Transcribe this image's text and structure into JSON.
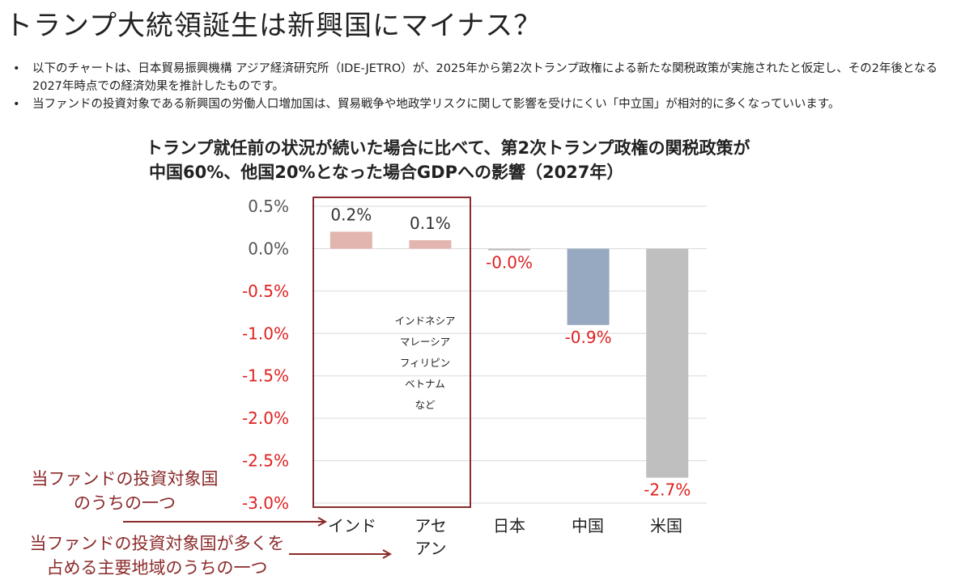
{
  "page": {
    "title": "トランプ大統領誕生は新興国にマイナス？",
    "bullets": [
      "以下のチャートは、日本貿易振興機構 アジア経済研究所（IDE-JETRO）が、2025年から第2次トランプ政権による新たな関税政策が実施されたと仮定し、その2年後となる2027年時点での経済効果を推計したものです。",
      "当ファンドの投資対象である新興国の労働人口増加国は、貿易戦争や地政学リスクに関して影響を受けにくい「中立国」が相対的に多くなっていいます。"
    ]
  },
  "chart_data": {
    "type": "bar",
    "title": "トランプ就任前の状況が続いた場合に比べて、第2次トランプ政権の関税政策が",
    "subtitle": "中国60%、他国20%となった場合GDPへの影響（2027年）",
    "categories": [
      "インド",
      "アセアン",
      "日本",
      "中国",
      "米国"
    ],
    "category_lines": [
      [
        "インド"
      ],
      [
        "アセ",
        "アン"
      ],
      [
        "日本"
      ],
      [
        "中国"
      ],
      [
        "米国"
      ]
    ],
    "values": [
      0.2,
      0.1,
      -0.02,
      -0.9,
      -2.7
    ],
    "data_labels": [
      "0.2%",
      "0.1%",
      "-0.0%",
      "-0.9%",
      "-2.7%"
    ],
    "bar_colors": [
      "#e2b5ae",
      "#e2b5ae",
      "#bfbfbf",
      "#97a9c0",
      "#bfbfbf"
    ],
    "label_colors": [
      "#333333",
      "#333333",
      "#e02020",
      "#e02020",
      "#e02020"
    ],
    "y_ticks": [
      0.5,
      0.0,
      -0.5,
      -1.0,
      -1.5,
      -2.0,
      -2.5,
      -3.0
    ],
    "y_tick_labels": [
      "0.5%",
      "0.0%",
      "-0.5%",
      "-1.0%",
      "-1.5%",
      "-2.0%",
      "-2.5%",
      "-3.0%"
    ],
    "ylim": [
      -3.0,
      0.5
    ],
    "grid": true,
    "xlabel": "",
    "ylabel": ""
  },
  "annotations": {
    "asean_countries": [
      "インドネシア",
      "マレーシア",
      "フィリピン",
      "ベトナム",
      "など"
    ],
    "callout_one": [
      "当ファンドの投資対象国",
      "のうちの一つ"
    ],
    "callout_region": [
      "当ファンドの投資対象国が多くを",
      "占める主要地域のうちの一つ"
    ],
    "accent_color": "#8b2a2a"
  }
}
